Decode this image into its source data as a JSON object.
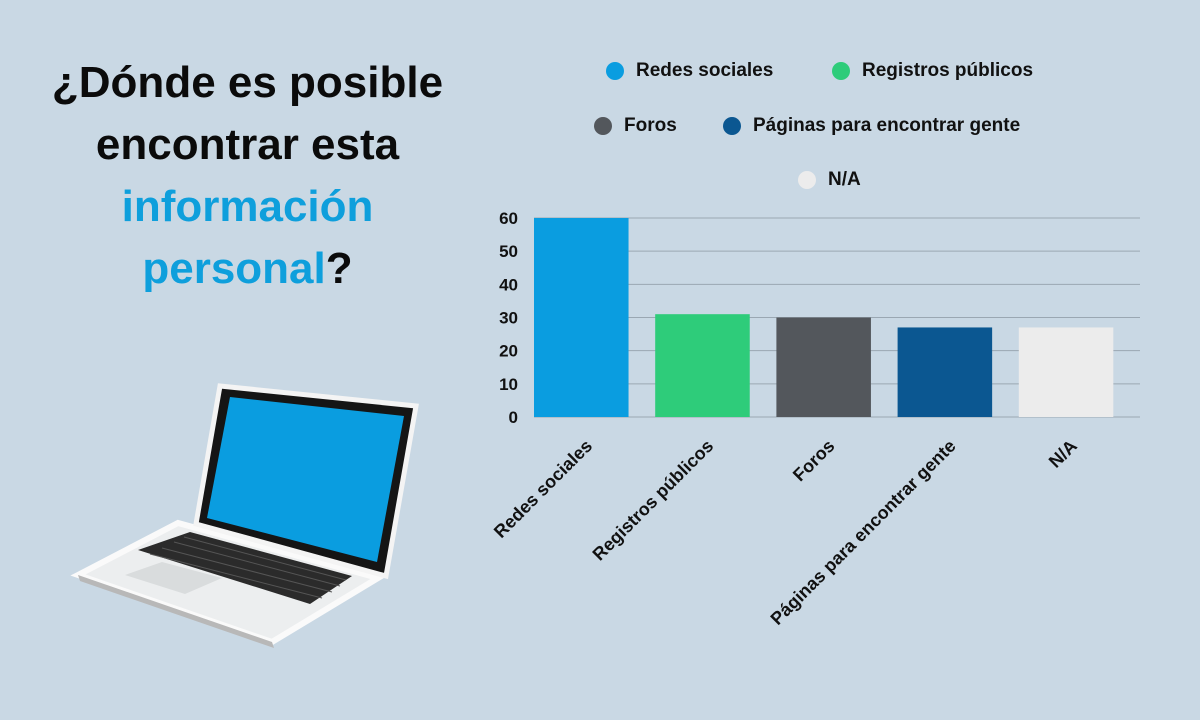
{
  "headline": {
    "part1": "¿Dónde es posible encontrar esta",
    "highlight": "información personal",
    "end": "?"
  },
  "colors": {
    "background": "#c9d8e4",
    "accent": "#0e9fdc"
  },
  "laptop_icon": "laptop-icon",
  "chart_data": {
    "type": "bar",
    "title": "",
    "xlabel": "",
    "ylabel": "",
    "categories": [
      "Redes sociales",
      "Registros públicos",
      "Foros",
      "Páginas para encontrar gente",
      "N/A"
    ],
    "values": [
      60,
      31,
      30,
      27,
      27
    ],
    "colors": [
      "#0a9de0",
      "#2ecc7a",
      "#53575c",
      "#0b5791",
      "#ececec"
    ],
    "ylim": [
      0,
      60
    ],
    "yticks": [
      0,
      10,
      20,
      30,
      40,
      50,
      60
    ],
    "grid": true,
    "legend_position": "top",
    "legend": [
      {
        "label": "Redes sociales",
        "color": "#0a9de0"
      },
      {
        "label": "Registros públicos",
        "color": "#2ecc7a"
      },
      {
        "label": "Foros",
        "color": "#53575c"
      },
      {
        "label": "Páginas para encontrar gente",
        "color": "#0b5791"
      },
      {
        "label": "N/A",
        "color": "#ececec"
      }
    ]
  }
}
